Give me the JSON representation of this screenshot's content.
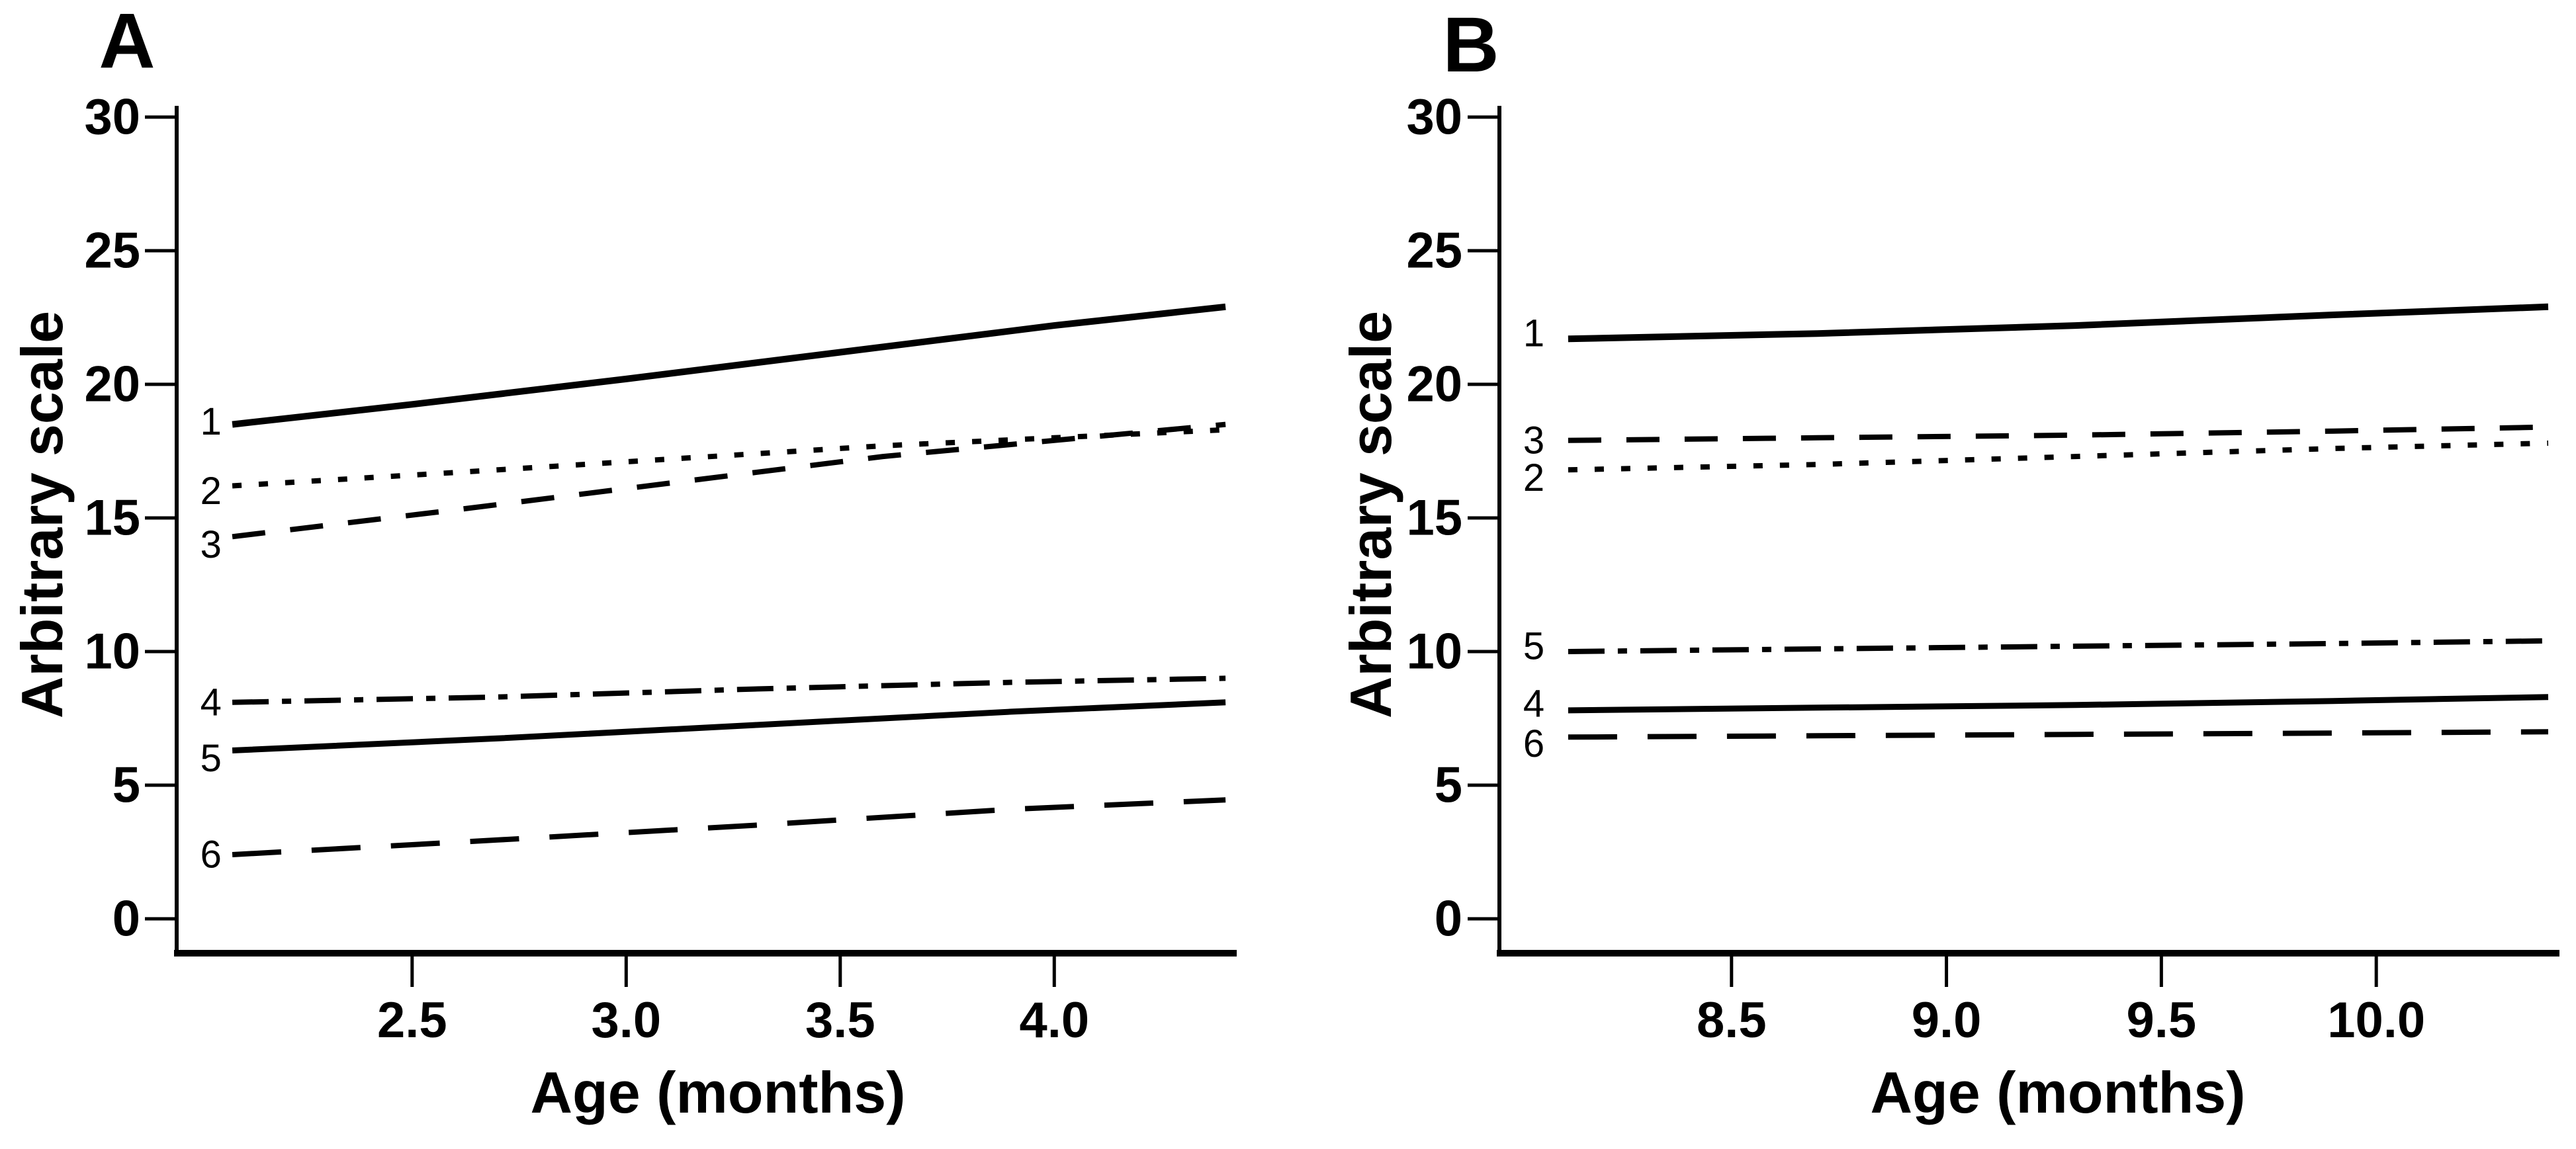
{
  "figure": {
    "background": "#ffffff",
    "ink": "#000000"
  },
  "chart_data": [
    {
      "panel": "A",
      "type": "line",
      "title": "A",
      "xlabel": "Age (months)",
      "ylabel": "Arbitrary scale",
      "x_range": [
        1.95,
        4.42
      ],
      "y_range": [
        0,
        30
      ],
      "grid": false,
      "legend_position": "inline-left-labels",
      "x_ticks": [
        {
          "value": 2.5,
          "label": "2.5"
        },
        {
          "value": 3.0,
          "label": "3.0"
        },
        {
          "value": 3.5,
          "label": "3.5"
        },
        {
          "value": 4.0,
          "label": "4.0"
        }
      ],
      "y_ticks": [
        {
          "value": 30,
          "label": "30"
        },
        {
          "value": 25,
          "label": "25"
        },
        {
          "value": 20,
          "label": "20"
        },
        {
          "value": 15,
          "label": "15"
        },
        {
          "value": 10,
          "label": "10"
        },
        {
          "value": 5,
          "label": "5"
        },
        {
          "value": 0,
          "label": "0"
        }
      ],
      "series": [
        {
          "id": "1",
          "label": "1",
          "style": "solid",
          "width": 10,
          "label_at": {
            "x": 2.03,
            "y": 18.6
          },
          "points": [
            [
              2.08,
              18.5
            ],
            [
              2.5,
              19.25
            ],
            [
              3.0,
              20.2
            ],
            [
              3.5,
              21.2
            ],
            [
              4.0,
              22.2
            ],
            [
              4.4,
              22.9
            ]
          ]
        },
        {
          "id": "2",
          "label": "2",
          "style": "dotted",
          "width": 8,
          "label_at": {
            "x": 2.03,
            "y": 16.0
          },
          "points": [
            [
              2.08,
              16.2
            ],
            [
              2.6,
              16.7
            ],
            [
              3.1,
              17.2
            ],
            [
              3.6,
              17.7
            ],
            [
              4.0,
              18.0
            ],
            [
              4.4,
              18.3
            ]
          ]
        },
        {
          "id": "3",
          "label": "3",
          "style": "dashed",
          "width": 8,
          "label_at": {
            "x": 2.03,
            "y": 14.0
          },
          "points": [
            [
              2.08,
              14.3
            ],
            [
              2.6,
              15.3
            ],
            [
              3.1,
              16.3
            ],
            [
              3.6,
              17.3
            ],
            [
              4.0,
              17.9
            ],
            [
              4.4,
              18.5
            ]
          ]
        },
        {
          "id": "4",
          "label": "4",
          "style": "dash-dot",
          "width": 8,
          "label_at": {
            "x": 2.03,
            "y": 8.1
          },
          "points": [
            [
              2.08,
              8.1
            ],
            [
              2.7,
              8.3
            ],
            [
              3.3,
              8.6
            ],
            [
              3.9,
              8.85
            ],
            [
              4.4,
              9.0
            ]
          ]
        },
        {
          "id": "5",
          "label": "5",
          "style": "solid",
          "width": 9,
          "label_at": {
            "x": 2.03,
            "y": 6.0
          },
          "points": [
            [
              2.08,
              6.3
            ],
            [
              2.7,
              6.75
            ],
            [
              3.3,
              7.25
            ],
            [
              3.9,
              7.75
            ],
            [
              4.4,
              8.1
            ]
          ]
        },
        {
          "id": "6",
          "label": "6",
          "style": "long-dash",
          "width": 8,
          "label_at": {
            "x": 2.03,
            "y": 2.4
          },
          "points": [
            [
              2.08,
              2.4
            ],
            [
              2.7,
              2.95
            ],
            [
              3.3,
              3.5
            ],
            [
              3.9,
              4.1
            ],
            [
              4.4,
              4.45
            ]
          ]
        }
      ]
    },
    {
      "panel": "B",
      "type": "line",
      "title": "B",
      "xlabel": "Age (months)",
      "ylabel": "Arbitrary scale",
      "x_range": [
        7.96,
        10.42
      ],
      "y_range": [
        0,
        30
      ],
      "grid": false,
      "legend_position": "inline-left-labels",
      "x_ticks": [
        {
          "value": 8.5,
          "label": "8.5"
        },
        {
          "value": 9.0,
          "label": "9.0"
        },
        {
          "value": 9.5,
          "label": "9.5"
        },
        {
          "value": 10.0,
          "label": "10.0"
        }
      ],
      "y_ticks": [
        {
          "value": 30,
          "label": "30"
        },
        {
          "value": 25,
          "label": "25"
        },
        {
          "value": 20,
          "label": "20"
        },
        {
          "value": 15,
          "label": "15"
        },
        {
          "value": 10,
          "label": "10"
        },
        {
          "value": 5,
          "label": "5"
        },
        {
          "value": 0,
          "label": "0"
        }
      ],
      "series": [
        {
          "id": "1",
          "label": "1",
          "style": "solid",
          "width": 10,
          "label_at": {
            "x": 8.04,
            "y": 21.9
          },
          "points": [
            [
              8.12,
              21.7
            ],
            [
              8.7,
              21.9
            ],
            [
              9.3,
              22.2
            ],
            [
              9.9,
              22.6
            ],
            [
              10.4,
              22.9
            ]
          ]
        },
        {
          "id": "3",
          "label": "3",
          "style": "dashed",
          "width": 8,
          "label_at": {
            "x": 8.04,
            "y": 17.9
          },
          "points": [
            [
              8.12,
              17.9
            ],
            [
              8.7,
              18.0
            ],
            [
              9.3,
              18.1
            ],
            [
              9.9,
              18.25
            ],
            [
              10.4,
              18.4
            ]
          ]
        },
        {
          "id": "2",
          "label": "2",
          "style": "dotted",
          "width": 8,
          "label_at": {
            "x": 8.04,
            "y": 16.5
          },
          "points": [
            [
              8.12,
              16.8
            ],
            [
              8.7,
              17.0
            ],
            [
              9.3,
              17.3
            ],
            [
              9.9,
              17.6
            ],
            [
              10.4,
              17.8
            ]
          ]
        },
        {
          "id": "5",
          "label": "5",
          "style": "dash-dot",
          "width": 8,
          "label_at": {
            "x": 8.04,
            "y": 10.2
          },
          "points": [
            [
              8.12,
              10.0
            ],
            [
              8.7,
              10.1
            ],
            [
              9.3,
              10.2
            ],
            [
              9.9,
              10.3
            ],
            [
              10.4,
              10.4
            ]
          ]
        },
        {
          "id": "4",
          "label": "4",
          "style": "solid",
          "width": 9,
          "label_at": {
            "x": 8.04,
            "y": 8.05
          },
          "points": [
            [
              8.12,
              7.8
            ],
            [
              8.7,
              7.9
            ],
            [
              9.3,
              8.0
            ],
            [
              9.9,
              8.15
            ],
            [
              10.4,
              8.3
            ]
          ]
        },
        {
          "id": "6",
          "label": "6",
          "style": "long-dash",
          "width": 8,
          "label_at": {
            "x": 8.04,
            "y": 6.55
          },
          "points": [
            [
              8.12,
              6.8
            ],
            [
              8.7,
              6.85
            ],
            [
              9.3,
              6.9
            ],
            [
              9.9,
              6.95
            ],
            [
              10.4,
              7.0
            ]
          ]
        }
      ]
    }
  ]
}
